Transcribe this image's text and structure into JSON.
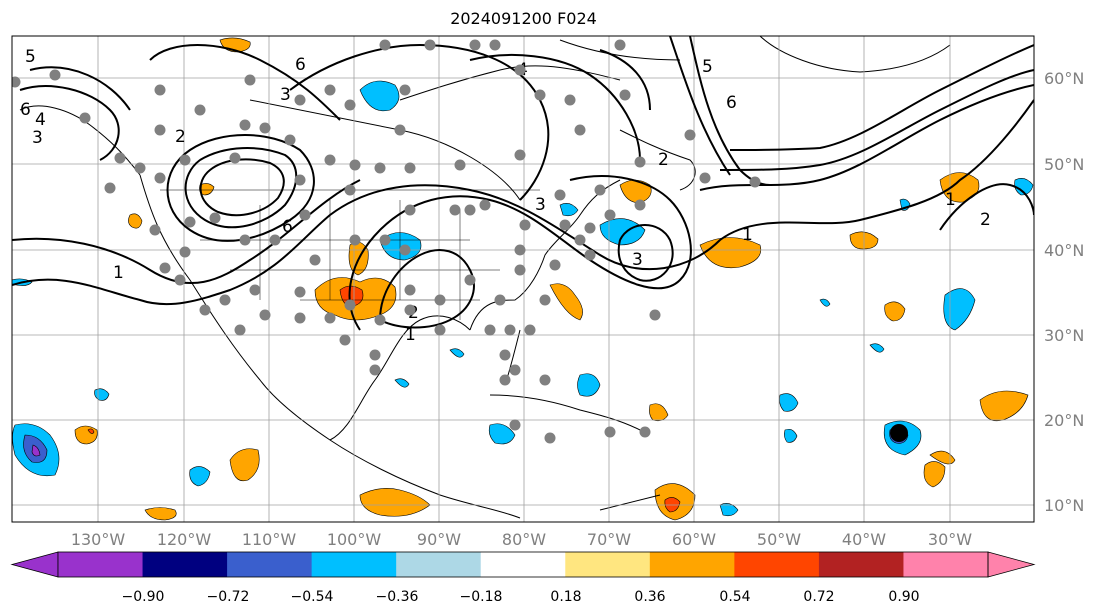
{
  "title": "2024091200 F024",
  "map": {
    "lon_ticks": [
      "130°W",
      "120°W",
      "110°W",
      "100°W",
      "90°W",
      "80°W",
      "70°W",
      "60°W",
      "50°W",
      "40°W",
      "30°W"
    ],
    "lat_ticks": [
      "60°N",
      "50°N",
      "40°N",
      "30°N",
      "20°N",
      "10°N"
    ],
    "contour_labels": [
      "1",
      "2",
      "3",
      "4",
      "5",
      "6"
    ],
    "storm_marker": "hurricane-center",
    "colors": {
      "grid": "#a0a0a0",
      "tick_text": "#808080",
      "marker": "#808080"
    }
  },
  "colorbar": {
    "ticks": [
      "−0.90",
      "−0.72",
      "−0.54",
      "−0.36",
      "−0.18",
      "0.18",
      "0.36",
      "0.54",
      "0.72",
      "0.90"
    ],
    "colors": [
      "#9932cc",
      "#000080",
      "#3a5fcd",
      "#00bfff",
      "#add8e6",
      "#ffffff",
      "#ffe680",
      "#ffa500",
      "#ff4500",
      "#b22222",
      "#ff82ab"
    ]
  }
}
